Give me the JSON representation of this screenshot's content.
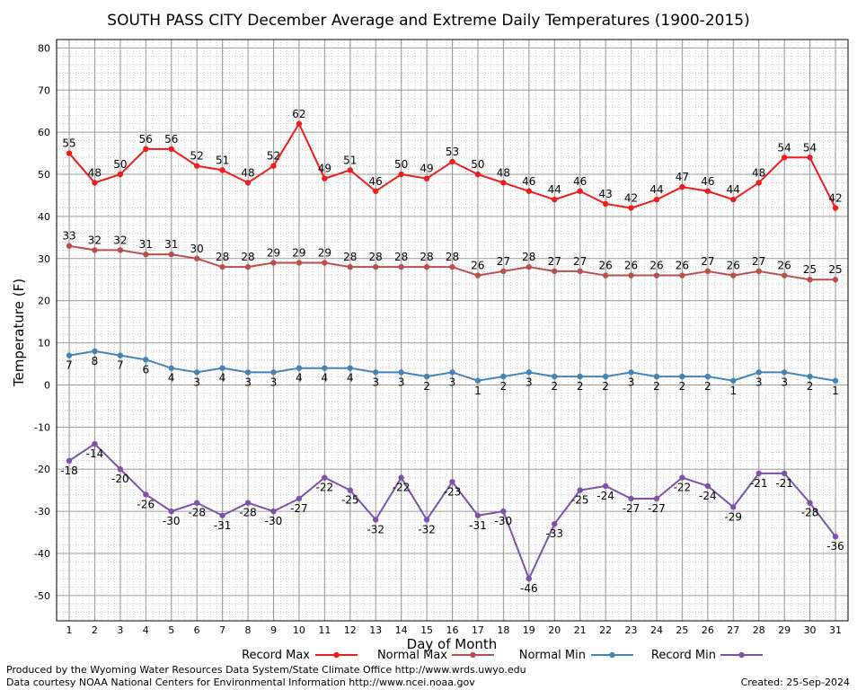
{
  "chart_data": {
    "type": "line",
    "title": "SOUTH PASS CITY December Average and Extreme Daily Temperatures (1900-2015)",
    "xlabel": "Day of Month",
    "ylabel": "Temperature (F)",
    "ylim": [
      -56,
      82
    ],
    "yticks": [
      -50,
      -40,
      -30,
      -20,
      -10,
      0,
      10,
      20,
      30,
      40,
      50,
      60,
      70,
      80
    ],
    "x": [
      1,
      2,
      3,
      4,
      5,
      6,
      7,
      8,
      9,
      10,
      11,
      12,
      13,
      14,
      15,
      16,
      17,
      18,
      19,
      20,
      21,
      22,
      23,
      24,
      25,
      26,
      27,
      28,
      29,
      30,
      31
    ],
    "grid": true,
    "legend_position": "bottom",
    "series": [
      {
        "name": "Record Max",
        "color": "#ee1c1c",
        "label_position": "above",
        "values": [
          55,
          48,
          50,
          56,
          56,
          52,
          51,
          48,
          52,
          62,
          49,
          51,
          46,
          50,
          49,
          53,
          50,
          48,
          46,
          44,
          46,
          43,
          42,
          44,
          47,
          46,
          44,
          48,
          54,
          54,
          42
        ]
      },
      {
        "name": "Normal Max",
        "color": "#b84f4f",
        "label_position": "above",
        "values": [
          33,
          32,
          32,
          31,
          31,
          30,
          28,
          28,
          29,
          29,
          29,
          28,
          28,
          28,
          28,
          28,
          26,
          27,
          28,
          27,
          27,
          26,
          26,
          26,
          26,
          27,
          26,
          27,
          26,
          25,
          25
        ]
      },
      {
        "name": "Normal Min",
        "color": "#4682b4",
        "label_position": "below",
        "values": [
          7,
          8,
          7,
          6,
          4,
          3,
          4,
          3,
          3,
          4,
          4,
          4,
          3,
          3,
          2,
          3,
          1,
          2,
          3,
          2,
          2,
          2,
          3,
          2,
          2,
          2,
          1,
          3,
          3,
          2,
          1
        ]
      },
      {
        "name": "Record Min",
        "color": "#7b52a8",
        "label_position": "below",
        "values": [
          -18,
          -14,
          -20,
          -26,
          -30,
          -28,
          -31,
          -28,
          -30,
          -27,
          -22,
          -25,
          -32,
          -22,
          -32,
          -23,
          -31,
          -30,
          -46,
          -33,
          -25,
          -24,
          -27,
          -27,
          -22,
          -24,
          -29,
          -21,
          -21,
          -28,
          -36
        ]
      }
    ]
  },
  "footer": {
    "producer": "Produced by the Wyoming Water Resources Data System/State Climate Office http://www.wrds.uwyo.edu",
    "courtesy": "Data courtesy NOAA National Centers for Environmental Information http://www.ncei.noaa.gov",
    "created": "Created: 25-Sep-2024"
  }
}
